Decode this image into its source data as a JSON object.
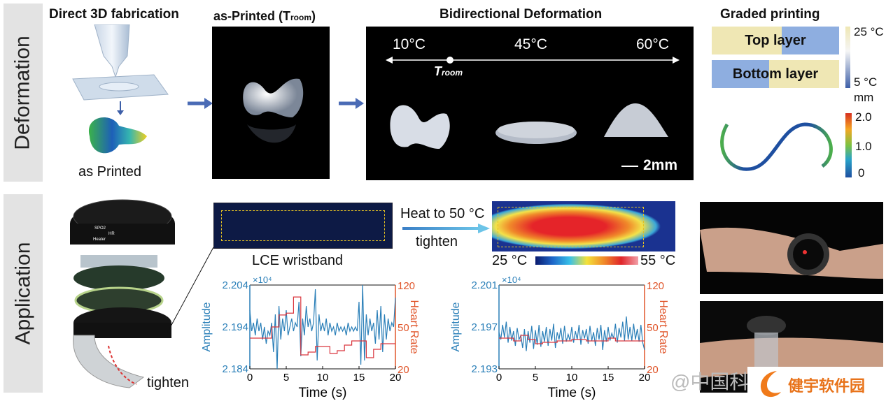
{
  "rows": {
    "deformation": "Deformation",
    "application": "Application"
  },
  "top": {
    "fabrication_title": "Direct 3D fabrication",
    "as_printed_label": "as Printed",
    "photo_title_main": "as-Printed (T",
    "photo_title_sub": "room",
    "photo_title_end": ")",
    "bidirectional_title": "Bidirectional Deformation",
    "temps": [
      "10°C",
      "45°C",
      "60°C"
    ],
    "troom_main": "T",
    "troom_sub": "room",
    "scale_bar": "2mm",
    "graded_title": "Graded printing",
    "top_layer": "Top layer",
    "bottom_layer": "Bottom layer",
    "temp_bar": [
      "25 °C",
      "5 °C"
    ],
    "disp_unit": "mm",
    "disp_ticks": [
      "2.0",
      "1.0",
      "0"
    ]
  },
  "bottom": {
    "tighten_device": "tighten",
    "lce_label": "LCE wristband",
    "heat_label": "Heat to 50 °C",
    "tighten_arrow": "tighten",
    "thermal_bar": [
      "25 °C",
      "55 °C"
    ],
    "watch_text": [
      "SPO2",
      "HR",
      "Heater"
    ],
    "watermark": "@中国科",
    "logo_text": "健宇软件园"
  },
  "colors": {
    "amp": "#2a7fb8",
    "hr": "#e0552a",
    "hrline": "#d9363e",
    "arrow": "#4a6bb5"
  },
  "chart_data": [
    {
      "type": "line",
      "xlabel": "Time (s)",
      "ylabel": "Amplitude",
      "y2label": "Heart Rate",
      "multiplier": "×10⁴",
      "xlim": [
        0,
        20
      ],
      "xticks": [
        "0",
        "5",
        "10",
        "15",
        "20"
      ],
      "ylim": [
        2.184,
        2.204
      ],
      "yticks": [
        "2.184",
        "2.194",
        "2.204"
      ],
      "y2ticks": [
        "20",
        "50",
        "120"
      ],
      "amplitude": {
        "dt": 0.25,
        "values": [
          2.198,
          2.193,
          2.195,
          2.192,
          2.196,
          2.193,
          2.195,
          2.191,
          2.194,
          2.19,
          2.193,
          2.192,
          2.195,
          2.188,
          2.197,
          2.184,
          2.199,
          2.191,
          2.196,
          2.193,
          2.198,
          2.192,
          2.194,
          2.196,
          2.193,
          2.195,
          2.194,
          2.2,
          2.187,
          2.196,
          2.192,
          2.199,
          2.194,
          2.196,
          2.193,
          2.195,
          2.203,
          2.186,
          2.197,
          2.193,
          2.195,
          2.193,
          2.196,
          2.192,
          2.195,
          2.193,
          2.194,
          2.192,
          2.195,
          2.193,
          2.194,
          2.193,
          2.194,
          2.192,
          2.195,
          2.193,
          2.194,
          2.193,
          2.194,
          2.193,
          2.2,
          2.185,
          2.204,
          2.186,
          2.197,
          2.192,
          2.196,
          2.193,
          2.195,
          2.19,
          2.198,
          2.191,
          2.199,
          2.188,
          2.197,
          2.191,
          2.196,
          2.193,
          2.195,
          2.194,
          2.201
        ]
      },
      "heart_rate": {
        "steps": [
          [
            0,
            42
          ],
          [
            3,
            50
          ],
          [
            4,
            70
          ],
          [
            5,
            73
          ],
          [
            6,
            100
          ],
          [
            7,
            30
          ],
          [
            8,
            32
          ],
          [
            9,
            36
          ],
          [
            11,
            31
          ],
          [
            12,
            33
          ],
          [
            13,
            37
          ],
          [
            14,
            40
          ],
          [
            16,
            28
          ],
          [
            17,
            34
          ],
          [
            18,
            38
          ],
          [
            20,
            38
          ]
        ]
      }
    },
    {
      "type": "line",
      "xlabel": "Time (s)",
      "ylabel": "Amplitude",
      "y2label": "Heart Rate",
      "multiplier": "×10⁴",
      "xlim": [
        0,
        20
      ],
      "xticks": [
        "0",
        "5",
        "10",
        "15",
        "20"
      ],
      "ylim": [
        2.193,
        2.201
      ],
      "yticks": [
        "2.193",
        "2.197",
        "2.201"
      ],
      "y2ticks": [
        "20",
        "50",
        "120"
      ],
      "amplitude": {
        "dt": 0.25,
        "values": [
          2.1965,
          2.1958,
          2.1972,
          2.196,
          2.1975,
          2.1955,
          2.197,
          2.1957,
          2.1966,
          2.1952,
          2.1969,
          2.1958,
          2.1962,
          2.195,
          2.1968,
          2.1947,
          2.1966,
          2.1955,
          2.1971,
          2.1949,
          2.1967,
          2.1953,
          2.1972,
          2.1951,
          2.1966,
          2.1956,
          2.197,
          2.1952,
          2.1968,
          2.1957,
          2.1973,
          2.195,
          2.1965,
          2.1958,
          2.1969,
          2.1954,
          2.1971,
          2.1956,
          2.1963,
          2.1957,
          2.197,
          2.1955,
          2.1966,
          2.1958,
          2.1972,
          2.1953,
          2.1967,
          2.1959,
          2.1968,
          2.1954,
          2.1971,
          2.1957,
          2.1965,
          2.1952,
          2.1969,
          2.1958,
          2.1972,
          2.1948,
          2.1967,
          2.1956,
          2.197,
          2.1957,
          2.1964,
          2.1959,
          2.1973,
          2.1955,
          2.1969,
          2.196,
          2.1975,
          2.1957,
          2.198,
          2.1958,
          2.197,
          2.1957,
          2.1973,
          2.1958,
          2.1968,
          2.1956,
          2.1972,
          2.1955,
          2.1948
        ]
      },
      "heart_rate": {
        "steps": [
          [
            0,
            42
          ],
          [
            2,
            40
          ],
          [
            3,
            44
          ],
          [
            4,
            41
          ],
          [
            5,
            38
          ],
          [
            6,
            39
          ],
          [
            8,
            40
          ],
          [
            10,
            41
          ],
          [
            12,
            40
          ],
          [
            15,
            42
          ],
          [
            16,
            40
          ],
          [
            20,
            40
          ]
        ]
      }
    }
  ]
}
